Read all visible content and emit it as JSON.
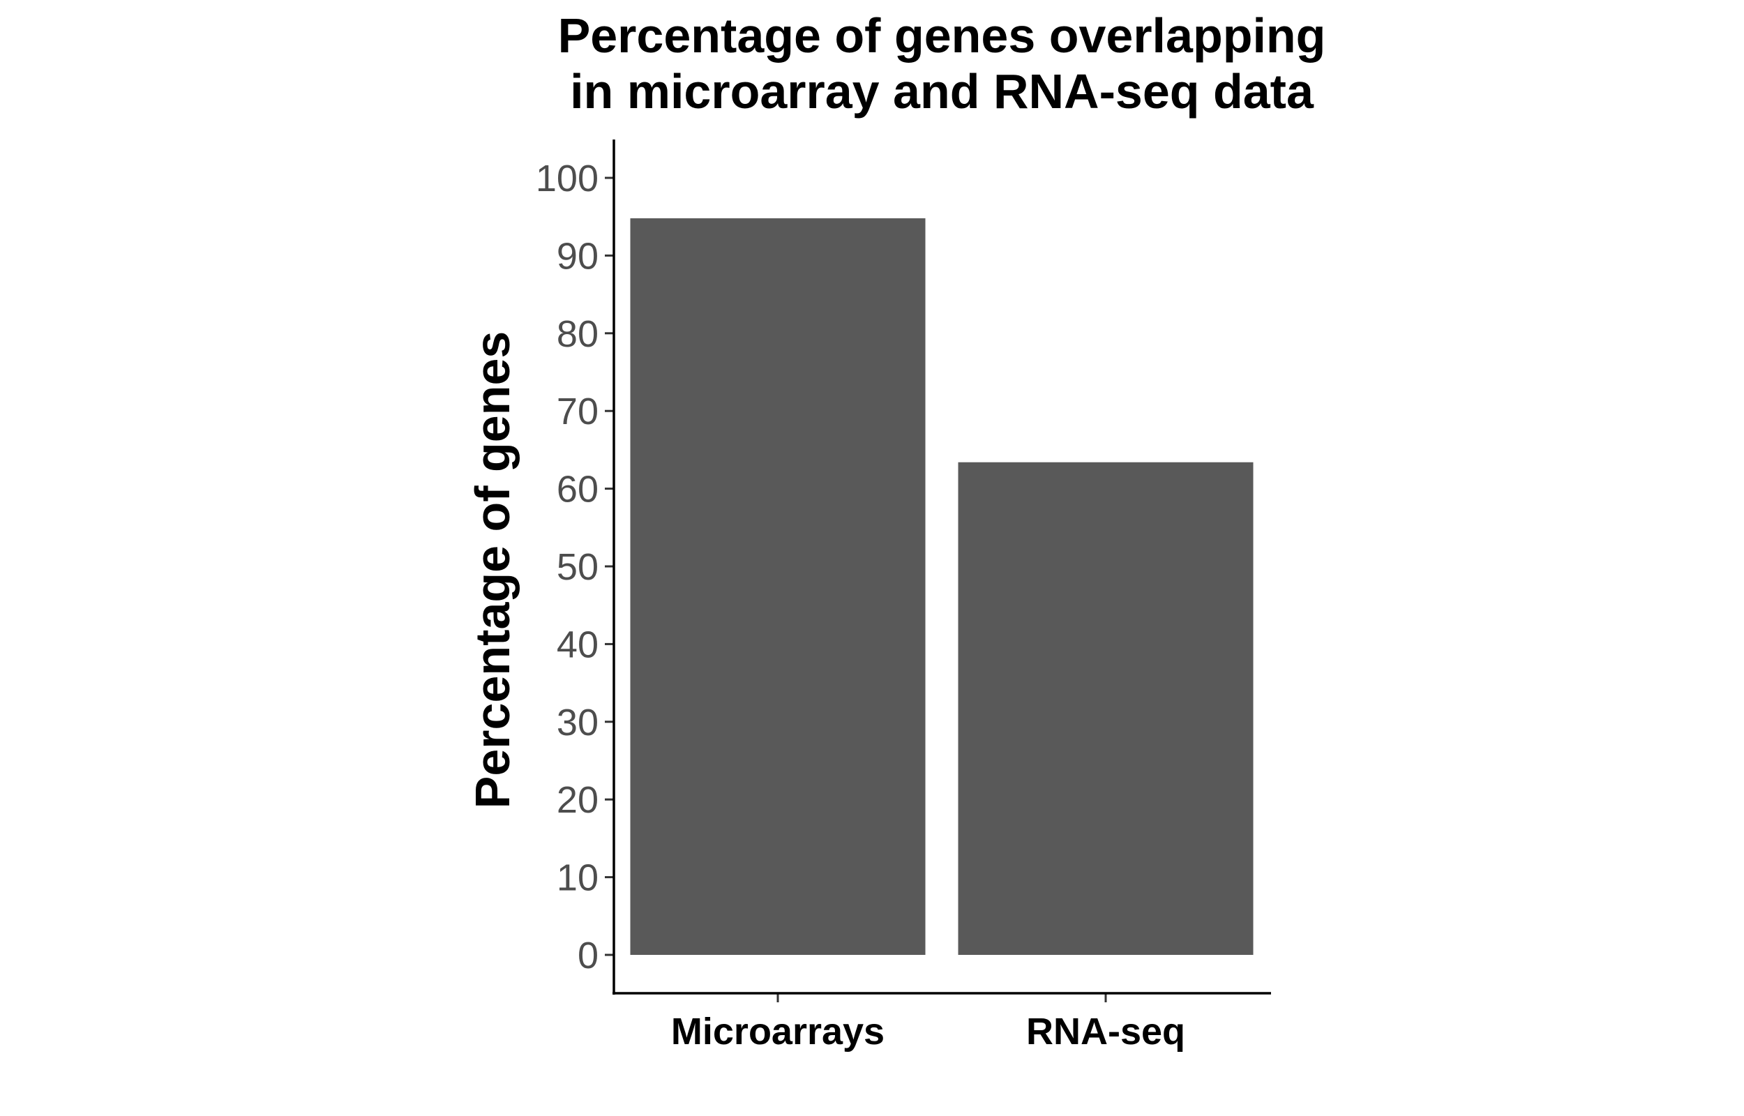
{
  "chart_data": {
    "type": "bar",
    "title": [
      "Percentage of genes overlapping",
      "in microarray and RNA-seq data"
    ],
    "xlabel": "",
    "ylabel": "Percentage of genes",
    "categories": [
      "Microarrays",
      "RNA-seq"
    ],
    "values": [
      94.8,
      63.4
    ],
    "ylim": [
      0,
      105
    ],
    "yticks": [
      "0",
      "10",
      "20",
      "30",
      "40",
      "50",
      "60",
      "70",
      "80",
      "90",
      "100"
    ],
    "grid": false,
    "legend": "none",
    "bar_color": "#595959"
  }
}
